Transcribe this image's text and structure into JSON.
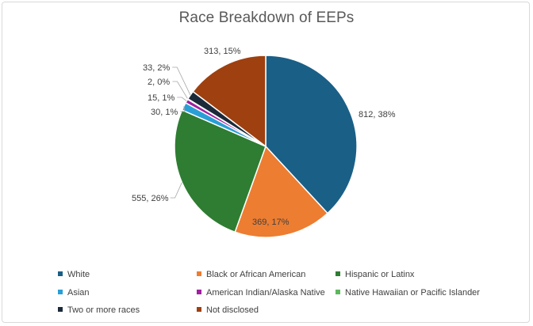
{
  "chart_data": {
    "type": "pie",
    "title": "Race Breakdown of EEPs",
    "slices": [
      {
        "name": "White",
        "value": 812,
        "percent": 38,
        "label": "812, 38%",
        "color": "#1a5f86"
      },
      {
        "name": "Black or African American",
        "value": 369,
        "percent": 17,
        "label": "369, 17%",
        "color": "#ed7d31"
      },
      {
        "name": "Hispanic or Latinx",
        "value": 555,
        "percent": 26,
        "label": "555, 26%",
        "color": "#2e7d32"
      },
      {
        "name": "Asian",
        "value": 30,
        "percent": 1,
        "label": "30, 1%",
        "color": "#2a9fd6"
      },
      {
        "name": "American Indian/Alaska Native",
        "value": 15,
        "percent": 1,
        "label": "15, 1%",
        "color": "#a020a0"
      },
      {
        "name": "Native Hawaiian or Pacific Islander",
        "value": 2,
        "percent": 0,
        "label": "2, 0%",
        "color": "#5cb85c"
      },
      {
        "name": "Two or more races",
        "value": 33,
        "percent": 2,
        "label": "33, 2%",
        "color": "#1b2a3a"
      },
      {
        "name": "Not disclosed",
        "value": 313,
        "percent": 15,
        "label": "313, 15%",
        "color": "#9e4010"
      }
    ],
    "legend_position": "bottom"
  }
}
